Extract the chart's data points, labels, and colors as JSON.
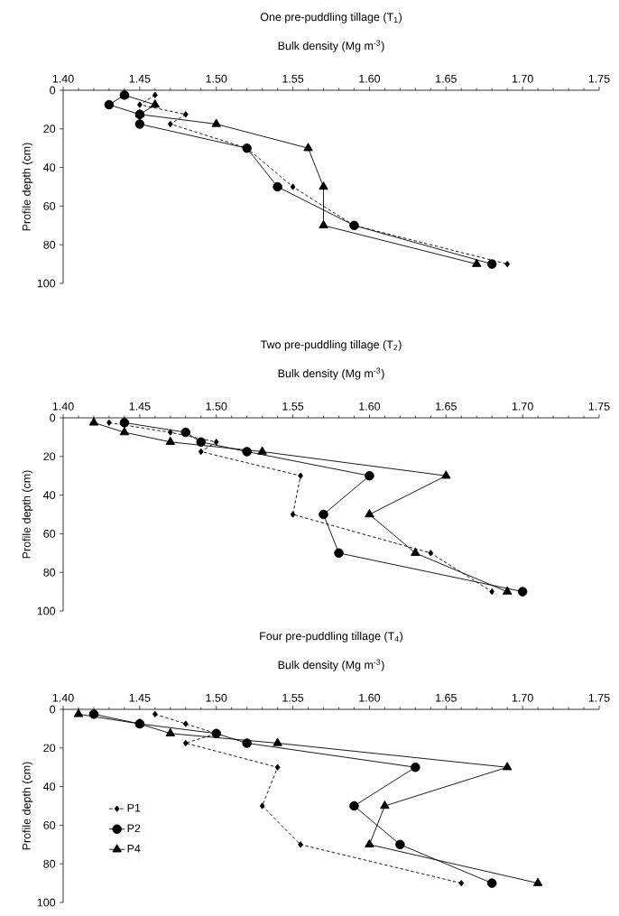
{
  "chart_data": [
    {
      "type": "line",
      "title": "One pre-puddling tillage (T$_{1}$)",
      "xlabel": "Bulk density (Mg m$^{-3}$)",
      "ylabel": "Profile depth (cm)",
      "xlim": [
        1.4,
        1.75
      ],
      "xticks": [
        {
          "value": 1.4,
          "label": "1.40"
        },
        1.45,
        {
          "value": 1.5,
          "label": "1.50"
        },
        1.55,
        {
          "value": 1.6,
          "label": "1.60"
        },
        1.65,
        {
          "value": 1.7,
          "label": "1.70"
        },
        1.75
      ],
      "ylim": [
        100,
        0
      ],
      "yticks": [
        0,
        20,
        40,
        60,
        80,
        100
      ],
      "grid": false,
      "legend": false,
      "series": [
        {
          "color": "#000000",
          "marker": "diamond",
          "line_style": "dashed",
          "x": [
            1.46,
            1.45,
            1.48,
            1.47,
            1.52,
            1.55,
            1.59,
            1.69
          ],
          "values": [
            2.5,
            7.5,
            12.5,
            17.5,
            30,
            50,
            70,
            90
          ]
        },
        {
          "color": "#000000",
          "marker": "circle",
          "line_style": "solid",
          "x": [
            1.44,
            1.43,
            1.45,
            1.45,
            1.52,
            1.54,
            1.59,
            1.68
          ],
          "values": [
            2.5,
            7.5,
            12.5,
            17.5,
            30,
            50,
            70,
            90
          ]
        },
        {
          "color": "#000000",
          "marker": "triangle",
          "line_style": "solid",
          "x": [
            1.44,
            1.46,
            1.45,
            1.5,
            1.56,
            1.57,
            1.57,
            1.67
          ],
          "values": [
            2.5,
            7.5,
            12.5,
            17.5,
            30,
            50,
            70,
            90
          ]
        }
      ]
    },
    {
      "type": "line",
      "title": "Two pre-puddling tillage (T$_{2}$)",
      "xlabel": "Bulk density (Mg m$^{-3}$)",
      "ylabel": "Profile depth (cm)",
      "xlim": [
        1.4,
        1.75
      ],
      "xticks": [
        {
          "value": 1.4,
          "label": "1.40"
        },
        1.45,
        {
          "value": 1.5,
          "label": "1.50"
        },
        1.55,
        {
          "value": 1.6,
          "label": "1.60"
        },
        1.65,
        {
          "value": 1.7,
          "label": "1.70"
        },
        1.75
      ],
      "ylim": [
        100,
        0
      ],
      "yticks": [
        0,
        20,
        40,
        60,
        80,
        100
      ],
      "grid": false,
      "legend": false,
      "series": [
        {
          "color": "#000000",
          "marker": "diamond",
          "line_style": "dashed",
          "x": [
            1.43,
            1.47,
            1.5,
            1.49,
            1.555,
            1.55,
            1.64,
            1.68
          ],
          "values": [
            2.5,
            7.5,
            12.5,
            17.5,
            30,
            50,
            70,
            90
          ]
        },
        {
          "color": "#000000",
          "marker": "circle",
          "line_style": "solid",
          "x": [
            1.44,
            1.48,
            1.49,
            1.52,
            1.6,
            1.57,
            1.58,
            1.7
          ],
          "values": [
            2.5,
            7.5,
            12.5,
            17.5,
            30,
            50,
            70,
            90
          ]
        },
        {
          "color": "#000000",
          "marker": "triangle",
          "line_style": "solid",
          "x": [
            1.42,
            1.44,
            1.47,
            1.53,
            1.65,
            1.6,
            1.63,
            1.69
          ],
          "values": [
            2.5,
            7.5,
            12.5,
            17.5,
            30,
            50,
            70,
            90
          ]
        }
      ]
    },
    {
      "type": "line",
      "title": "Four pre-puddling tillage (T$_{4}$)",
      "xlabel": "Bulk density (Mg m$^{-3}$)",
      "ylabel": "Profile depth (cm)",
      "xlim": [
        1.4,
        1.75
      ],
      "xticks": [
        {
          "value": 1.4,
          "label": "1.40"
        },
        1.45,
        {
          "value": 1.5,
          "label": "1.50"
        },
        1.55,
        {
          "value": 1.6,
          "label": "1.60"
        },
        1.65,
        {
          "value": 1.7,
          "label": "1.70"
        },
        1.75
      ],
      "ylim": [
        100,
        0
      ],
      "yticks": [
        0,
        20,
        40,
        60,
        80,
        100
      ],
      "grid": false,
      "legend": "left",
      "series": [
        {
          "name": "P1",
          "color": "#000000",
          "marker": "diamond",
          "line_style": "dashed",
          "x": [
            1.46,
            1.48,
            1.5,
            1.48,
            1.54,
            1.53,
            1.555,
            1.66
          ],
          "values": [
            2.5,
            7.5,
            12.5,
            17.5,
            30,
            50,
            70,
            90
          ]
        },
        {
          "name": "P2",
          "color": "#000000",
          "marker": "circle",
          "line_style": "solid",
          "x": [
            1.42,
            1.45,
            1.5,
            1.52,
            1.63,
            1.59,
            1.62,
            1.68
          ],
          "values": [
            2.5,
            7.5,
            12.5,
            17.5,
            30,
            50,
            70,
            90
          ]
        },
        {
          "name": "P4",
          "color": "#000000",
          "marker": "triangle",
          "line_style": "solid",
          "x": [
            1.41,
            1.45,
            1.47,
            1.54,
            1.69,
            1.61,
            1.6,
            1.71
          ],
          "values": [
            2.5,
            7.5,
            12.5,
            17.5,
            30,
            50,
            70,
            90
          ]
        }
      ]
    }
  ]
}
